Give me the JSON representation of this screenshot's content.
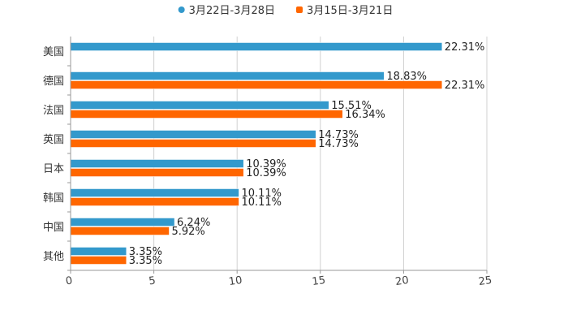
{
  "chart_data": {
    "type": "bar",
    "orientation": "horizontal",
    "title": "",
    "xlabel": "",
    "ylabel": "",
    "xlim": [
      0,
      25
    ],
    "x_ticks": [
      0,
      5,
      10,
      15,
      20,
      25
    ],
    "x_tick_labels": [
      "0",
      "5",
      "10",
      "15",
      "20",
      "25"
    ],
    "grid": true,
    "legend_position": "top-center",
    "categories": [
      "美国",
      "德国",
      "法国",
      "英国",
      "日本",
      "韩国",
      "中国",
      "其他"
    ],
    "series": [
      {
        "name": "3月22日-3月28日",
        "color": "#3399cc",
        "values": [
          22.31,
          18.83,
          15.51,
          14.73,
          10.39,
          10.11,
          6.24,
          3.35
        ],
        "labels": [
          "22.31%",
          "18.83%",
          "15.51%",
          "14.73%",
          "10.39%",
          "10.11%",
          "6.24%",
          "3.35%"
        ]
      },
      {
        "name": "3月15日-3月21日",
        "color": "#ff6600",
        "values": [
          null,
          22.31,
          16.34,
          14.73,
          10.39,
          10.11,
          5.92,
          3.35
        ],
        "labels": [
          null,
          "22.31%",
          "16.34%",
          "14.73%",
          "10.39%",
          "10.11%",
          "5.92%",
          "3.35%"
        ]
      }
    ]
  }
}
